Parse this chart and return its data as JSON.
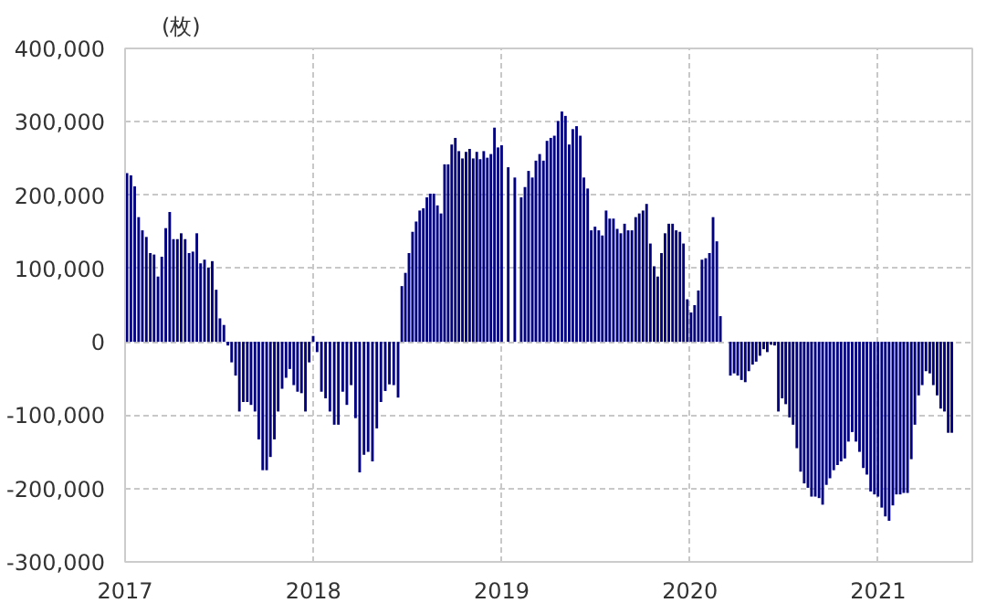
{
  "chart_data": {
    "type": "bar",
    "ylabel": "(枚)",
    "xlim": [
      2017,
      2021.5
    ],
    "xticks": [
      2017,
      2018,
      2019,
      2020,
      2021
    ],
    "ylim": [
      -300000,
      400000
    ],
    "yticks": [
      {
        "value": -300000,
        "label": "-300,000"
      },
      {
        "value": -200000,
        "label": "-200,000"
      },
      {
        "value": -100000,
        "label": "-100,000"
      },
      0,
      {
        "value": 100000,
        "label": "100,000"
      },
      {
        "value": 200000,
        "label": "200,000"
      },
      {
        "value": 300000,
        "label": "300,000"
      },
      {
        "value": 400000,
        "label": "400,000"
      }
    ],
    "grid": true,
    "series": [
      {
        "color": "#000080",
        "x": [
          2017.01,
          2017.031,
          2017.051,
          2017.072,
          2017.092,
          2017.113,
          2017.134,
          2017.154,
          2017.175,
          2017.195,
          2017.216,
          2017.237,
          2017.257,
          2017.278,
          2017.298,
          2017.319,
          2017.34,
          2017.36,
          2017.381,
          2017.401,
          2017.422,
          2017.443,
          2017.463,
          2017.484,
          2017.504,
          2017.525,
          2017.546,
          2017.566,
          2017.587,
          2017.607,
          2017.628,
          2017.649,
          2017.669,
          2017.69,
          2017.71,
          2017.731,
          2017.752,
          2017.772,
          2017.793,
          2017.813,
          2017.834,
          2017.855,
          2017.875,
          2017.896,
          2017.916,
          2017.937,
          2017.958,
          2017.978,
          2017.999,
          2018.02,
          2018.043,
          2018.065,
          2018.088,
          2018.111,
          2018.133,
          2018.156,
          2018.178,
          2018.201,
          2018.224,
          2018.246,
          2018.269,
          2018.291,
          2018.314,
          2018.337,
          2018.359,
          2018.382,
          2018.404,
          2018.427,
          2018.45,
          2018.47,
          2018.489,
          2018.508,
          2018.527,
          2018.546,
          2018.565,
          2018.584,
          2018.603,
          2018.621,
          2018.64,
          2018.659,
          2018.678,
          2018.697,
          2018.716,
          2018.735,
          2018.754,
          2018.773,
          2018.792,
          2018.811,
          2018.83,
          2018.849,
          2018.868,
          2018.886,
          2018.905,
          2018.924,
          2018.943,
          2018.962,
          2018.981,
          2019.0,
          2019.035,
          2019.07,
          2019.104,
          2019.124,
          2019.143,
          2019.163,
          2019.182,
          2019.202,
          2019.222,
          2019.241,
          2019.261,
          2019.28,
          2019.3,
          2019.32,
          2019.339,
          2019.359,
          2019.378,
          2019.398,
          2019.418,
          2019.437,
          2019.457,
          2019.476,
          2019.496,
          2019.516,
          2019.535,
          2019.555,
          2019.574,
          2019.594,
          2019.614,
          2019.633,
          2019.653,
          2019.672,
          2019.692,
          2019.712,
          2019.731,
          2019.751,
          2019.77,
          2019.79,
          2019.81,
          2019.829,
          2019.849,
          2019.868,
          2019.888,
          2019.908,
          2019.927,
          2019.947,
          2019.966,
          2019.986,
          2020.006,
          2020.025,
          2020.045,
          2020.064,
          2020.084,
          2020.104,
          2020.123,
          2020.143,
          2020.162,
          2020.215,
          2020.235,
          2020.254,
          2020.274,
          2020.294,
          2020.313,
          2020.333,
          2020.352,
          2020.372,
          2020.392,
          2020.411,
          2020.431,
          2020.45,
          2020.47,
          2020.49,
          2020.509,
          2020.529,
          2020.548,
          2020.568,
          2020.588,
          2020.607,
          2020.627,
          2020.646,
          2020.666,
          2020.686,
          2020.705,
          2020.725,
          2020.744,
          2020.764,
          2020.784,
          2020.803,
          2020.823,
          2020.842,
          2020.862,
          2020.882,
          2020.901,
          2020.921,
          2020.94,
          2020.96,
          2020.98,
          2020.999,
          2021.019,
          2021.038,
          2021.058,
          2021.078,
          2021.097,
          2021.117,
          2021.136,
          2021.156,
          2021.176,
          2021.195,
          2021.215,
          2021.234,
          2021.254,
          2021.274,
          2021.293,
          2021.313,
          2021.332,
          2021.352,
          2021.372,
          2021.391
        ],
        "values": [
          230000,
          227000,
          212000,
          170000,
          152000,
          143000,
          121000,
          119000,
          89000,
          116000,
          155000,
          177000,
          140000,
          140000,
          148000,
          140000,
          121000,
          123000,
          148000,
          107000,
          112000,
          101000,
          110000,
          71000,
          32000,
          23000,
          -5000,
          -28000,
          -46000,
          -95000,
          -82000,
          -82000,
          -86000,
          -95000,
          -133000,
          -175000,
          -175000,
          -157000,
          -133000,
          -95000,
          -64000,
          -49000,
          -37000,
          -59000,
          -68000,
          -70000,
          -95000,
          -28000,
          8000,
          -14000,
          -68000,
          -77000,
          -95000,
          -113000,
          -113000,
          -68000,
          -86000,
          -59000,
          -104000,
          -178000,
          -154000,
          -150000,
          -163000,
          -118000,
          -82000,
          -67000,
          -58000,
          -59000,
          -76000,
          76000,
          94000,
          121000,
          150000,
          164000,
          179000,
          182000,
          197000,
          202000,
          202000,
          186000,
          175000,
          242000,
          242000,
          269000,
          278000,
          260000,
          250000,
          259000,
          263000,
          250000,
          259000,
          249000,
          260000,
          251000,
          256000,
          292000,
          265000,
          268000,
          238000,
          224000,
          197000,
          211000,
          233000,
          224000,
          247000,
          256000,
          247000,
          274000,
          278000,
          281000,
          301000,
          314000,
          308000,
          269000,
          290000,
          294000,
          281000,
          224000,
          209000,
          152000,
          157000,
          152000,
          145000,
          179000,
          168000,
          168000,
          154000,
          148000,
          161000,
          152000,
          152000,
          170000,
          175000,
          179000,
          188000,
          134000,
          103000,
          89000,
          121000,
          148000,
          161000,
          161000,
          152000,
          150000,
          134000,
          58000,
          40000,
          50000,
          70000,
          112000,
          114000,
          121000,
          170000,
          137000,
          35000,
          -46000,
          -43000,
          -46000,
          -52000,
          -55000,
          -40000,
          -31000,
          -27000,
          -19000,
          -10000,
          -14000,
          -4000,
          -5000,
          -95000,
          -77000,
          -85000,
          -103000,
          -113000,
          -145000,
          -177000,
          -193000,
          -199000,
          -211000,
          -211000,
          -213000,
          -222000,
          -195000,
          -186000,
          -175000,
          -168000,
          -163000,
          -159000,
          -136000,
          -123000,
          -136000,
          -150000,
          -172000,
          -181000,
          -204000,
          -208000,
          -211000,
          -226000,
          -238000,
          -244000,
          -223000,
          -208000,
          -208000,
          -206000,
          -206000,
          -160000,
          -113000,
          -73000,
          -59000,
          -40000,
          -43000,
          -59000,
          -73000,
          -91000,
          -95000,
          -124000,
          -124000
        ]
      }
    ]
  }
}
